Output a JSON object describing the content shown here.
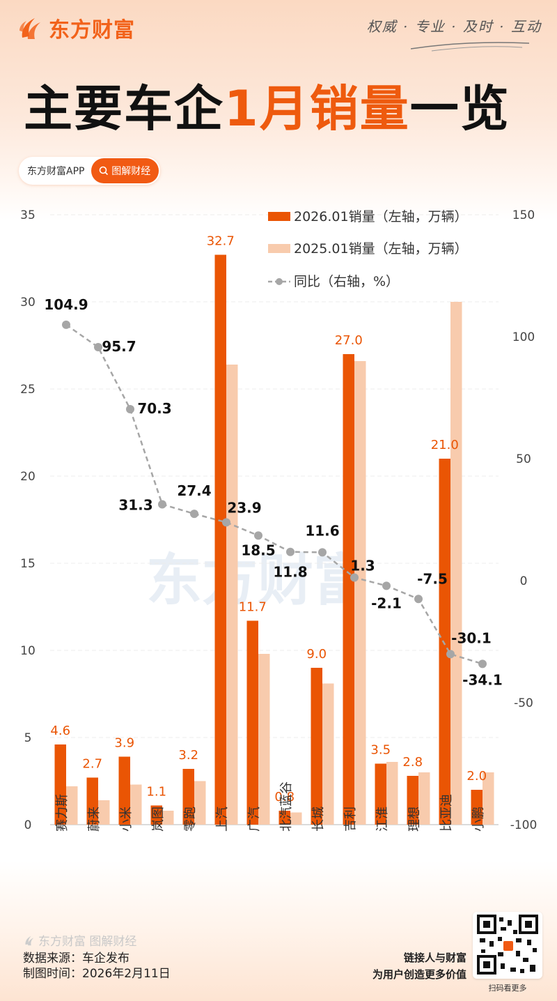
{
  "header": {
    "brand": "东方财富",
    "slogan": "权威 · 专业 · 及时 · 互动",
    "title_black": "主要车企",
    "title_orange": "1月销量",
    "title_black2": "一览",
    "pill_app": "东方财富APP",
    "pill_button": "图解财经"
  },
  "colors": {
    "bar_2026": "#ea5504",
    "bar_2025": "#f8cbad",
    "line": "#a6a6a6",
    "brand_orange": "#f15a13"
  },
  "chart_data": {
    "type": "bar+line",
    "title": "主要车企1月销量一览",
    "categories": [
      "赛力斯",
      "蔚来",
      "小米",
      "岚图",
      "零跑",
      "上汽",
      "广汽",
      "北汽蓝谷",
      "长城",
      "吉利",
      "江淮",
      "理想",
      "比亚迪",
      "小鹏"
    ],
    "series": [
      {
        "name": "2026.01销量（左轴，万辆）",
        "axis": "left",
        "type": "bar",
        "values": [
          4.6,
          2.7,
          3.9,
          1.1,
          3.2,
          32.7,
          11.7,
          0.8,
          9.0,
          27.0,
          3.5,
          2.8,
          21.0,
          2.0
        ]
      },
      {
        "name": "2025.01销量（左轴，万辆）",
        "axis": "left",
        "type": "bar",
        "values": [
          2.2,
          1.4,
          2.3,
          0.8,
          2.5,
          26.4,
          9.8,
          0.7,
          8.1,
          26.6,
          3.6,
          3.0,
          30.0,
          3.0
        ]
      },
      {
        "name": "同比（右轴，%）",
        "axis": "right",
        "type": "line",
        "values": [
          104.9,
          95.7,
          70.3,
          31.3,
          27.4,
          23.9,
          18.5,
          11.8,
          11.6,
          1.3,
          -2.1,
          -7.5,
          -30.1,
          -34.1
        ]
      }
    ],
    "left_axis": {
      "min": 0,
      "max": 35,
      "ticks": [
        0,
        5,
        10,
        15,
        20,
        25,
        30,
        35
      ]
    },
    "right_axis": {
      "min": -100,
      "max": 150,
      "ticks": [
        -100,
        -50,
        0,
        50,
        100,
        150
      ]
    },
    "grid": true,
    "legend_position": "top-right",
    "xlabel": "",
    "ylabel": ""
  },
  "legend": [
    {
      "label": "2026.01销量（左轴，万辆）"
    },
    {
      "label": "2025.01销量（左轴，万辆）"
    },
    {
      "label": "同比（右轴，%）"
    }
  ],
  "footer": {
    "brand": "东方财富 图解财经",
    "source": "数据来源：车企发布",
    "date": "制图时间：2026年2月11日",
    "tagline1": "链接人与财富",
    "tagline2": "为用户创造更多价值",
    "qr_caption": "扫码看更多"
  }
}
